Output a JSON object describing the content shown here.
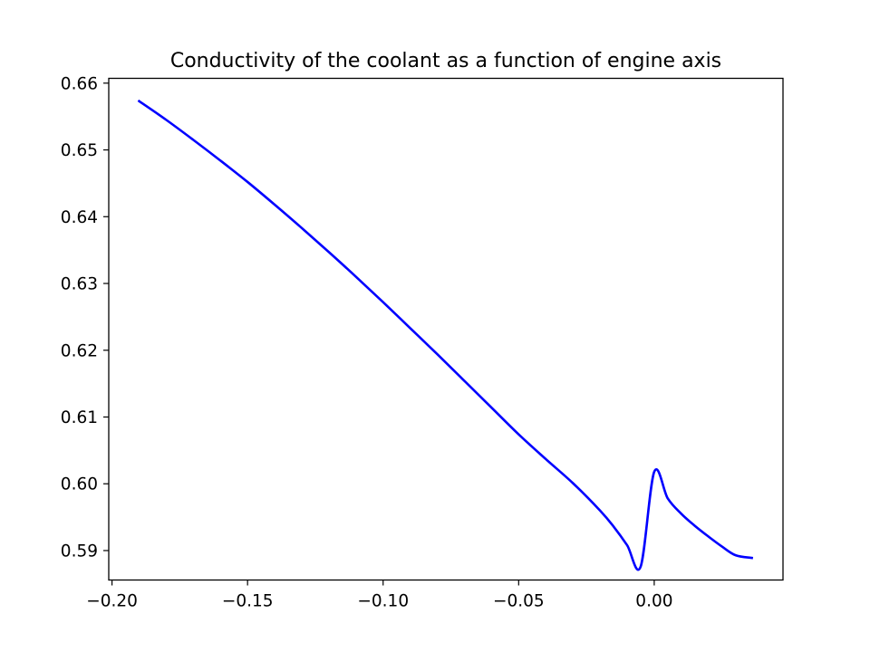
{
  "chart_data": {
    "type": "line",
    "title": "Conductivity of the coolant as a function of engine axis",
    "xlabel": "",
    "ylabel": "",
    "xlim": [
      -0.2012,
      0.0475
    ],
    "ylim": [
      0.58559,
      0.66072
    ],
    "x_ticks": [
      -0.2,
      -0.15,
      -0.1,
      -0.05,
      0.0
    ],
    "x_tick_labels": [
      "−0.20",
      "−0.15",
      "−0.10",
      "−0.05",
      "0.00"
    ],
    "y_ticks": [
      0.59,
      0.6,
      0.61,
      0.62,
      0.63,
      0.64,
      0.65,
      0.66
    ],
    "y_tick_labels": [
      "0.59",
      "0.60",
      "0.61",
      "0.62",
      "0.63",
      "0.64",
      "0.65",
      "0.66"
    ],
    "grid": false,
    "series": [
      {
        "color": "#0000ff",
        "x": [
          -0.19,
          -0.18,
          -0.17,
          -0.16,
          -0.15,
          -0.14,
          -0.13,
          -0.12,
          -0.11,
          -0.1,
          -0.09,
          -0.08,
          -0.07,
          -0.06,
          -0.05,
          -0.04,
          -0.03,
          -0.02,
          -0.015,
          -0.01,
          -0.005,
          0.0,
          0.005,
          0.01,
          0.015,
          0.02,
          0.025,
          0.03,
          0.036
        ],
        "y": [
          0.6573,
          0.6545,
          0.6515,
          0.6484,
          0.6452,
          0.6418,
          0.6383,
          0.6347,
          0.631,
          0.6272,
          0.6233,
          0.6194,
          0.6154,
          0.6114,
          0.6074,
          0.6037,
          0.6001,
          0.596,
          0.5936,
          0.5908,
          0.5876,
          0.6018,
          0.5978,
          0.5955,
          0.5937,
          0.5921,
          0.5906,
          0.5893,
          0.5889
        ]
      }
    ]
  }
}
